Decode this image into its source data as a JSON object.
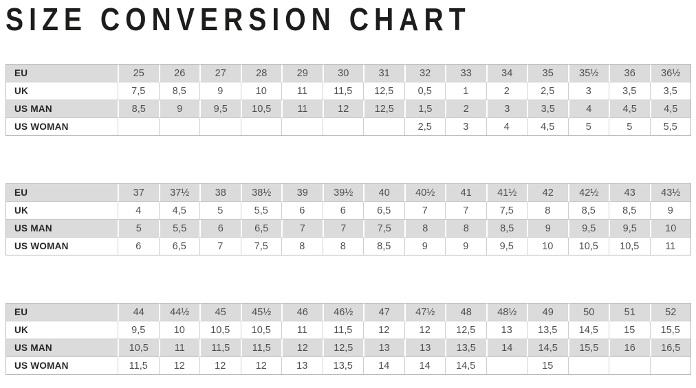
{
  "title": "SIZE CONVERSION CHART",
  "colors": {
    "row_gray": "#dbdbdb",
    "row_white": "#ffffff",
    "grid_line": "#c9c9c9",
    "outer_border": "#b7b7b7",
    "title_text": "#1d1d1b",
    "label_text": "#262626",
    "value_text": "#4f4f4f"
  },
  "chart_data": {
    "type": "table",
    "title": "SIZE CONVERSION CHART",
    "row_labels": [
      "EU",
      "UK",
      "US MAN",
      "US WOMAN"
    ],
    "tables": [
      {
        "rows": [
          {
            "label": "EU",
            "values": [
              "25",
              "26",
              "27",
              "28",
              "29",
              "30",
              "31",
              "32",
              "33",
              "34",
              "35",
              "35½",
              "36",
              "36½"
            ]
          },
          {
            "label": "UK",
            "values": [
              "7,5",
              "8,5",
              "9",
              "10",
              "11",
              "11,5",
              "12,5",
              "0,5",
              "1",
              "2",
              "2,5",
              "3",
              "3,5",
              "3,5"
            ]
          },
          {
            "label": "US MAN",
            "values": [
              "8,5",
              "9",
              "9,5",
              "10,5",
              "11",
              "12",
              "12,5",
              "1,5",
              "2",
              "3",
              "3,5",
              "4",
              "4,5",
              "4,5"
            ]
          },
          {
            "label": "US WOMAN",
            "values": [
              "",
              "",
              "",
              "",
              "",
              "",
              "",
              "2,5",
              "3",
              "4",
              "4,5",
              "5",
              "5",
              "5,5"
            ]
          }
        ]
      },
      {
        "rows": [
          {
            "label": "EU",
            "values": [
              "37",
              "37½",
              "38",
              "38½",
              "39",
              "39½",
              "40",
              "40½",
              "41",
              "41½",
              "42",
              "42½",
              "43",
              "43½"
            ]
          },
          {
            "label": "UK",
            "values": [
              "4",
              "4,5",
              "5",
              "5,5",
              "6",
              "6",
              "6,5",
              "7",
              "7",
              "7,5",
              "8",
              "8,5",
              "8,5",
              "9"
            ]
          },
          {
            "label": "US MAN",
            "values": [
              "5",
              "5,5",
              "6",
              "6,5",
              "7",
              "7",
              "7,5",
              "8",
              "8",
              "8,5",
              "9",
              "9,5",
              "9,5",
              "10"
            ]
          },
          {
            "label": "US WOMAN",
            "values": [
              "6",
              "6,5",
              "7",
              "7,5",
              "8",
              "8",
              "8,5",
              "9",
              "9",
              "9,5",
              "10",
              "10,5",
              "10,5",
              "11"
            ]
          }
        ]
      },
      {
        "rows": [
          {
            "label": "EU",
            "values": [
              "44",
              "44½",
              "45",
              "45½",
              "46",
              "46½",
              "47",
              "47½",
              "48",
              "48½",
              "49",
              "50",
              "51",
              "52"
            ]
          },
          {
            "label": "UK",
            "values": [
              "9,5",
              "10",
              "10,5",
              "10,5",
              "11",
              "11,5",
              "12",
              "12",
              "12,5",
              "13",
              "13,5",
              "14,5",
              "15",
              "15,5"
            ]
          },
          {
            "label": "US MAN",
            "values": [
              "10,5",
              "11",
              "11,5",
              "11,5",
              "12",
              "12,5",
              "13",
              "13",
              "13,5",
              "14",
              "14,5",
              "15,5",
              "16",
              "16,5"
            ]
          },
          {
            "label": "US WOMAN",
            "values": [
              "11,5",
              "12",
              "12",
              "12",
              "13",
              "13,5",
              "14",
              "14",
              "14,5",
              "",
              "15",
              "",
              "",
              ""
            ]
          }
        ]
      }
    ]
  }
}
